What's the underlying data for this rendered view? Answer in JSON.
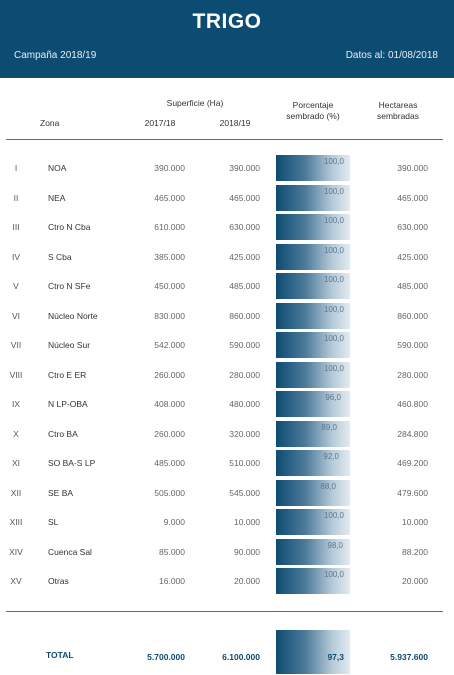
{
  "header": {
    "title": "TRIGO",
    "campaign": "Campaña 2018/19",
    "date": "Datos al: 01/08/2018"
  },
  "columns": {
    "superficie": "Superficie (Ha)",
    "zona": "Zona",
    "y1": "2017/18",
    "y2": "2018/19",
    "pct_line1": "Porcentaje",
    "pct_line2": "sembrado (%)",
    "ha_line1": "Hectareas",
    "ha_line2": "sembradas"
  },
  "rows": [
    {
      "num": "I",
      "zona": "NOA",
      "v1": "390.000",
      "v2": "390.000",
      "pct": "100,0",
      "ha": "390.000"
    },
    {
      "num": "II",
      "zona": "NEA",
      "v1": "465.000",
      "v2": "465.000",
      "pct": "100,0",
      "ha": "465.000"
    },
    {
      "num": "III",
      "zona": "Ctro N Cba",
      "v1": "610.000",
      "v2": "630.000",
      "pct": "100,0",
      "ha": "630.000"
    },
    {
      "num": "IV",
      "zona": "S Cba",
      "v1": "385.000",
      "v2": "425.000",
      "pct": "100,0",
      "ha": "425.000"
    },
    {
      "num": "V",
      "zona": "Ctro N SFe",
      "v1": "450.000",
      "v2": "485.000",
      "pct": "100,0",
      "ha": "485.000"
    },
    {
      "num": "VI",
      "zona": "Núcleo Norte",
      "v1": "830.000",
      "v2": "860.000",
      "pct": "100,0",
      "ha": "860.000"
    },
    {
      "num": "VII",
      "zona": "Núcleo Sur",
      "v1": "542.000",
      "v2": "590.000",
      "pct": "100,0",
      "ha": "590.000"
    },
    {
      "num": "VIII",
      "zona": "Ctro E ER",
      "v1": "260.000",
      "v2": "280.000",
      "pct": "100,0",
      "ha": "280.000"
    },
    {
      "num": "IX",
      "zona": "N LP-OBA",
      "v1": "408.000",
      "v2": "480.000",
      "pct": "96,0",
      "ha": "460.800"
    },
    {
      "num": "X",
      "zona": "Ctro BA",
      "v1": "260.000",
      "v2": "320.000",
      "pct": "89,0",
      "ha": "284.800"
    },
    {
      "num": "XI",
      "zona": "SO BA-S LP",
      "v1": "485.000",
      "v2": "510.000",
      "pct": "92,0",
      "ha": "469.200"
    },
    {
      "num": "XII",
      "zona": "SE BA",
      "v1": "505.000",
      "v2": "545.000",
      "pct": "88,0",
      "ha": "479.600"
    },
    {
      "num": "XIII",
      "zona": "SL",
      "v1": "9.000",
      "v2": "10.000",
      "pct": "100,0",
      "ha": "10.000"
    },
    {
      "num": "XIV",
      "zona": "Cuenca Sal",
      "v1": "85.000",
      "v2": "90.000",
      "pct": "98,0",
      "ha": "88.200"
    },
    {
      "num": "XV",
      "zona": "Otras",
      "v1": "16.000",
      "v2": "20.000",
      "pct": "100,0",
      "ha": "20.000"
    }
  ],
  "total": {
    "label": "TOTAL",
    "v1": "5.700.000",
    "v2": "6.100.000",
    "pct": "97,3",
    "ha": "5.937.600"
  },
  "colors": {
    "header_bg": "#0d4c72",
    "accent": "#0d4c72"
  }
}
